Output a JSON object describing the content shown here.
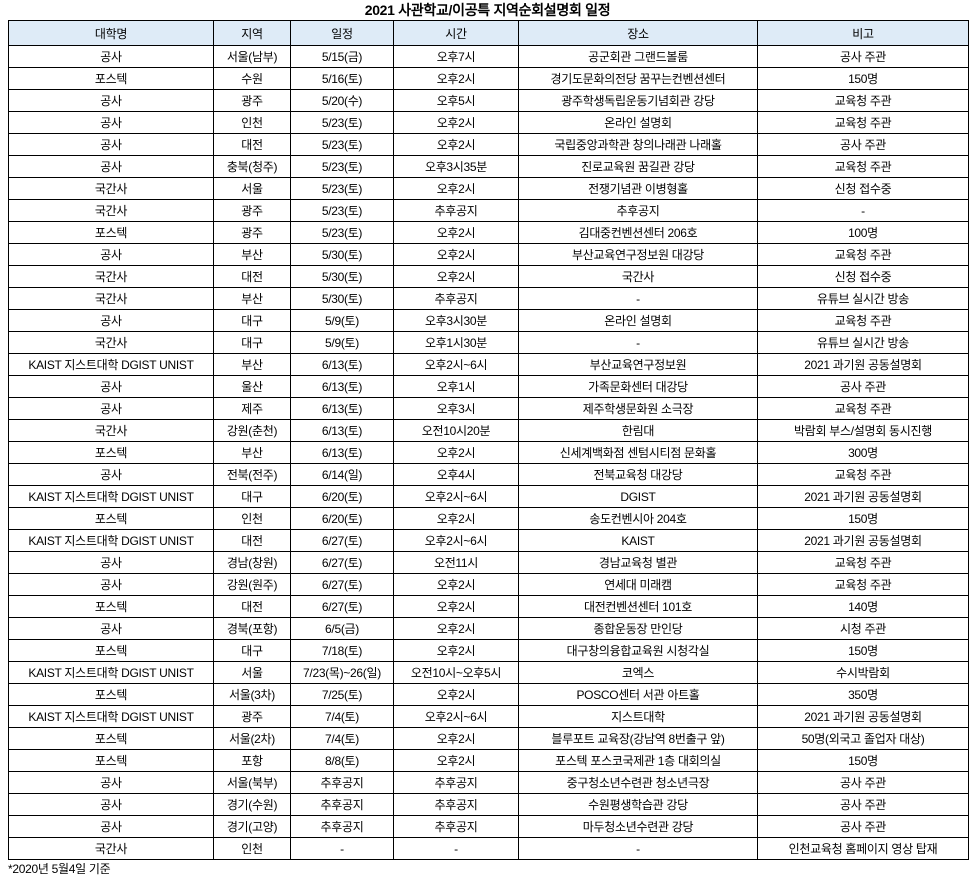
{
  "page": {
    "title": "2021 사관학교/이공특 지역순회설명회 일정",
    "footnote": "*2020년 5월4일 기준"
  },
  "table": {
    "header_bg": "#DEEBF7",
    "border_color": "#000000",
    "headers": [
      "대학명",
      "지역",
      "일정",
      "시간",
      "장소",
      "비고"
    ],
    "rows": [
      [
        "공사",
        "서울(남부)",
        "5/15(금)",
        "오후7시",
        "공군회관 그랜드볼룸",
        "공사 주관"
      ],
      [
        "포스텍",
        "수원",
        "5/16(토)",
        "오후2시",
        "경기도문화의전당 꿈꾸는컨벤션센터",
        "150명"
      ],
      [
        "공사",
        "광주",
        "5/20(수)",
        "오후5시",
        "광주학생독립운동기념회관 강당",
        "교육청 주관"
      ],
      [
        "공사",
        "인천",
        "5/23(토)",
        "오후2시",
        "온라인 설명회",
        "교육청 주관"
      ],
      [
        "공사",
        "대전",
        "5/23(토)",
        "오후2시",
        "국립중앙과학관 창의나래관 나래홀",
        "공사 주관"
      ],
      [
        "공사",
        "충북(청주)",
        "5/23(토)",
        "오후3시35분",
        "진로교육원 꿈길관 강당",
        "교육청 주관"
      ],
      [
        "국간사",
        "서울",
        "5/23(토)",
        "오후2시",
        "전쟁기념관 이병형홀",
        "신청 접수중"
      ],
      [
        "국간사",
        "광주",
        "5/23(토)",
        "추후공지",
        "추후공지",
        "-"
      ],
      [
        "포스텍",
        "광주",
        "5/23(토)",
        "오후2시",
        "김대중컨벤션센터 206호",
        "100명"
      ],
      [
        "공사",
        "부산",
        "5/30(토)",
        "오후2시",
        "부산교육연구정보원 대강당",
        "교육청 주관"
      ],
      [
        "국간사",
        "대전",
        "5/30(토)",
        "오후2시",
        "국간사",
        "신청 접수중"
      ],
      [
        "국간사",
        "부산",
        "5/30(토)",
        "추후공지",
        "-",
        "유튜브 실시간 방송"
      ],
      [
        "공사",
        "대구",
        "5/9(토)",
        "오후3시30분",
        "온라인 설명회",
        "교육청 주관"
      ],
      [
        "국간사",
        "대구",
        "5/9(토)",
        "오후1시30분",
        "-",
        "유튜브 실시간 방송"
      ],
      [
        "KAIST 지스트대학 DGIST UNIST",
        "부산",
        "6/13(토)",
        "오후2시~6시",
        "부산교육연구정보원",
        "2021 과기원 공동설명회"
      ],
      [
        "공사",
        "울산",
        "6/13(토)",
        "오후1시",
        "가족문화센터 대강당",
        "공사 주관"
      ],
      [
        "공사",
        "제주",
        "6/13(토)",
        "오후3시",
        "제주학생문화원 소극장",
        "교육청 주관"
      ],
      [
        "국간사",
        "강원(춘천)",
        "6/13(토)",
        "오전10시20분",
        "한림대",
        "박람회 부스/설명회 동시진행"
      ],
      [
        "포스텍",
        "부산",
        "6/13(토)",
        "오후2시",
        "신세계백화점 센텀시티점 문화홀",
        "300명"
      ],
      [
        "공사",
        "전북(전주)",
        "6/14(일)",
        "오후4시",
        "전북교육청 대강당",
        "교육청 주관"
      ],
      [
        "KAIST 지스트대학 DGIST UNIST",
        "대구",
        "6/20(토)",
        "오후2시~6시",
        "DGIST",
        "2021 과기원 공동설명회"
      ],
      [
        "포스텍",
        "인천",
        "6/20(토)",
        "오후2시",
        "송도컨벤시아 204호",
        "150명"
      ],
      [
        "KAIST 지스트대학 DGIST UNIST",
        "대전",
        "6/27(토)",
        "오후2시~6시",
        "KAIST",
        "2021 과기원 공동설명회"
      ],
      [
        "공사",
        "경남(창원)",
        "6/27(토)",
        "오전11시",
        "경남교육청 별관",
        "교육청 주관"
      ],
      [
        "공사",
        "강원(원주)",
        "6/27(토)",
        "오후2시",
        "연세대 미래캠",
        "교육청 주관"
      ],
      [
        "포스텍",
        "대전",
        "6/27(토)",
        "오후2시",
        "대전컨벤션센터 101호",
        "140명"
      ],
      [
        "공사",
        "경북(포항)",
        "6/5(금)",
        "오후2시",
        "종합운동장 만인당",
        "시청 주관"
      ],
      [
        "포스텍",
        "대구",
        "7/18(토)",
        "오후2시",
        "대구창의융합교육원 시청각실",
        "150명"
      ],
      [
        "KAIST 지스트대학 DGIST UNIST",
        "서울",
        "7/23(목)~26(일)",
        "오전10시~오후5시",
        "코엑스",
        "수시박람회"
      ],
      [
        "포스텍",
        "서울(3차)",
        "7/25(토)",
        "오후2시",
        "POSCO센터 서관 아트홀",
        "350명"
      ],
      [
        "KAIST 지스트대학 DGIST UNIST",
        "광주",
        "7/4(토)",
        "오후2시~6시",
        "지스트대학",
        "2021 과기원 공동설명회"
      ],
      [
        "포스텍",
        "서울(2차)",
        "7/4(토)",
        "오후2시",
        "블루포트 교육장(강남역 8번출구 앞)",
        "50명(외국고 졸업자 대상)"
      ],
      [
        "포스텍",
        "포항",
        "8/8(토)",
        "오후2시",
        "포스텍 포스코국제관 1층 대회의실",
        "150명"
      ],
      [
        "공사",
        "서울(북부)",
        "추후공지",
        "추후공지",
        "중구청소년수련관 청소년극장",
        "공사 주관"
      ],
      [
        "공사",
        "경기(수원)",
        "추후공지",
        "추후공지",
        "수원평생학습관 강당",
        "공사 주관"
      ],
      [
        "공사",
        "경기(고양)",
        "추후공지",
        "추후공지",
        "마두청소년수련관 강당",
        "공사 주관"
      ],
      [
        "국간사",
        "인천",
        "-",
        "-",
        "-",
        "인천교육청 홈페이지 영상 탑재"
      ]
    ]
  }
}
